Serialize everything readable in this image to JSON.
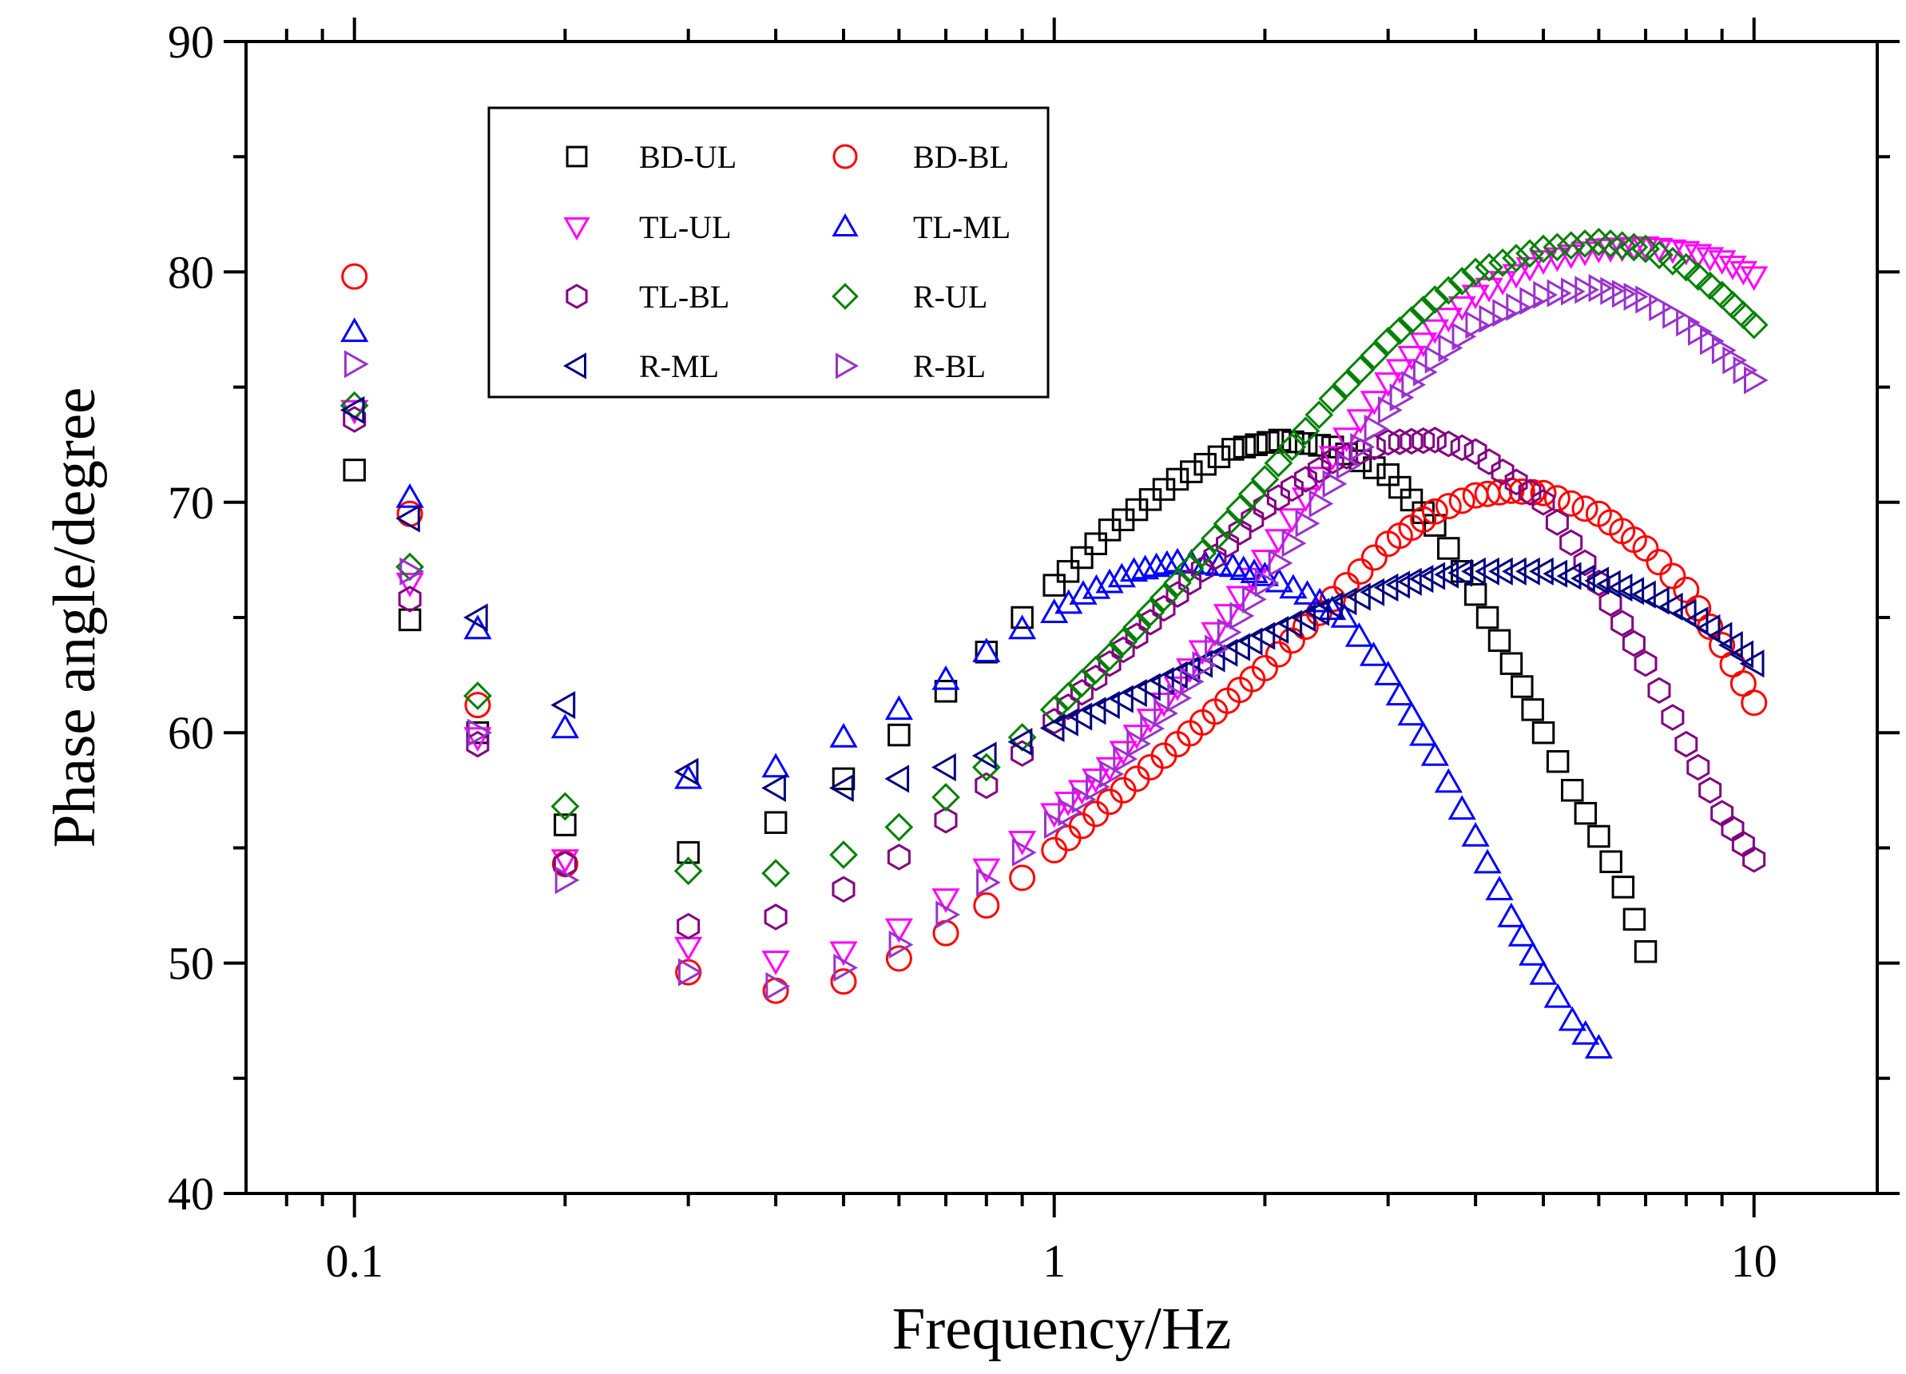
{
  "chart_data": {
    "type": "scatter",
    "xlabel": "Frequency/Hz",
    "ylabel": "Phase angle/degree",
    "x_scale": "log",
    "xlim": [
      0.07,
      15
    ],
    "ylim": [
      40,
      90
    ],
    "x_ticks": [
      {
        "value": 0.1,
        "label": "0.1"
      },
      {
        "value": 1,
        "label": "1"
      },
      {
        "value": 10,
        "label": "10"
      }
    ],
    "y_ticks": [
      {
        "value": 40,
        "label": "40"
      },
      {
        "value": 50,
        "label": "50"
      },
      {
        "value": 60,
        "label": "60"
      },
      {
        "value": 70,
        "label": "70"
      },
      {
        "value": 80,
        "label": "80"
      },
      {
        "value": 90,
        "label": "90"
      }
    ],
    "legend_position": "top-left",
    "series": [
      {
        "name": "BD-UL",
        "marker": "square",
        "color": "#000000",
        "points": [
          [
            0.1,
            71.4
          ],
          [
            0.12,
            64.9
          ],
          [
            0.15,
            60.0
          ],
          [
            0.2,
            56.0
          ],
          [
            0.3,
            54.8
          ],
          [
            0.4,
            56.1
          ],
          [
            0.5,
            58.0
          ],
          [
            0.6,
            59.9
          ],
          [
            0.7,
            61.8
          ],
          [
            0.8,
            63.5
          ],
          [
            0.9,
            65.0
          ],
          [
            1,
            66.4
          ],
          [
            1.2,
            68.8
          ],
          [
            1.5,
            71.0
          ],
          [
            1.8,
            72.3
          ],
          [
            2.1,
            72.7
          ],
          [
            2.5,
            72.4
          ],
          [
            3,
            71.2
          ],
          [
            3.5,
            69.0
          ],
          [
            4,
            66.0
          ],
          [
            4.5,
            63.0
          ],
          [
            5,
            60.0
          ],
          [
            5.5,
            57.5
          ],
          [
            6,
            55.5
          ],
          [
            6.5,
            53.3
          ],
          [
            7,
            50.5
          ]
        ]
      },
      {
        "name": "BD-BL",
        "marker": "circle",
        "color": "#ff0000",
        "points": [
          [
            0.1,
            79.8
          ],
          [
            0.12,
            69.5
          ],
          [
            0.15,
            61.2
          ],
          [
            0.2,
            54.3
          ],
          [
            0.3,
            49.6
          ],
          [
            0.4,
            48.8
          ],
          [
            0.5,
            49.2
          ],
          [
            0.6,
            50.2
          ],
          [
            0.7,
            51.3
          ],
          [
            0.8,
            52.5
          ],
          [
            0.9,
            53.7
          ],
          [
            1,
            54.9
          ],
          [
            1.2,
            57.0
          ],
          [
            1.5,
            59.5
          ],
          [
            2,
            62.8
          ],
          [
            2.5,
            65.8
          ],
          [
            3,
            68.2
          ],
          [
            3.5,
            69.6
          ],
          [
            4,
            70.3
          ],
          [
            4.5,
            70.5
          ],
          [
            5,
            70.4
          ],
          [
            6,
            69.5
          ],
          [
            7,
            68.0
          ],
          [
            8,
            66.2
          ],
          [
            9,
            63.8
          ],
          [
            10,
            61.3
          ]
        ]
      },
      {
        "name": "TL-UL",
        "marker": "triangle-down",
        "color": "#ff00ff",
        "points": [
          [
            0.1,
            74.0
          ],
          [
            0.12,
            66.5
          ],
          [
            0.15,
            59.8
          ],
          [
            0.2,
            54.5
          ],
          [
            0.3,
            50.7
          ],
          [
            0.4,
            50.1
          ],
          [
            0.5,
            50.5
          ],
          [
            0.6,
            51.5
          ],
          [
            0.7,
            52.8
          ],
          [
            0.8,
            54.1
          ],
          [
            0.9,
            55.3
          ],
          [
            1,
            56.5
          ],
          [
            1.2,
            58.5
          ],
          [
            1.5,
            62.0
          ],
          [
            2,
            67.5
          ],
          [
            2.5,
            72.0
          ],
          [
            3,
            75.2
          ],
          [
            3.5,
            77.5
          ],
          [
            4,
            79.0
          ],
          [
            5,
            80.5
          ],
          [
            6,
            81.0
          ],
          [
            7,
            81.1
          ],
          [
            8,
            80.9
          ],
          [
            9,
            80.5
          ],
          [
            10,
            79.8
          ]
        ]
      },
      {
        "name": "TL-ML",
        "marker": "triangle-up",
        "color": "#0000ff",
        "points": [
          [
            0.1,
            77.4
          ],
          [
            0.12,
            70.2
          ],
          [
            0.15,
            64.5
          ],
          [
            0.2,
            60.2
          ],
          [
            0.3,
            58.0
          ],
          [
            0.4,
            58.5
          ],
          [
            0.5,
            59.8
          ],
          [
            0.6,
            61.0
          ],
          [
            0.7,
            62.3
          ],
          [
            0.8,
            63.5
          ],
          [
            0.9,
            64.5
          ],
          [
            1,
            65.2
          ],
          [
            1.1,
            66.0
          ],
          [
            1.2,
            66.5
          ],
          [
            1.3,
            67.0
          ],
          [
            1.4,
            67.2
          ],
          [
            1.5,
            67.4
          ],
          [
            1.8,
            67.2
          ],
          [
            2,
            66.8
          ],
          [
            2.3,
            66.0
          ],
          [
            2.6,
            65.0
          ],
          [
            3,
            62.5
          ],
          [
            3.5,
            59.0
          ],
          [
            4,
            55.5
          ],
          [
            4.5,
            52.0
          ],
          [
            5,
            49.5
          ],
          [
            5.5,
            47.5
          ],
          [
            6,
            46.3
          ]
        ]
      },
      {
        "name": "TL-BL",
        "marker": "hexagon",
        "color": "#800080",
        "points": [
          [
            0.1,
            73.6
          ],
          [
            0.12,
            65.8
          ],
          [
            0.15,
            59.5
          ],
          [
            0.2,
            54.3
          ],
          [
            0.3,
            51.6
          ],
          [
            0.4,
            52.0
          ],
          [
            0.5,
            53.2
          ],
          [
            0.6,
            54.6
          ],
          [
            0.7,
            56.2
          ],
          [
            0.8,
            57.7
          ],
          [
            0.9,
            59.1
          ],
          [
            1,
            60.5
          ],
          [
            1.2,
            63.0
          ],
          [
            1.5,
            66.0
          ],
          [
            2,
            69.8
          ],
          [
            2.5,
            71.8
          ],
          [
            3,
            72.6
          ],
          [
            3.5,
            72.7
          ],
          [
            4,
            72.2
          ],
          [
            5,
            70.0
          ],
          [
            6,
            66.5
          ],
          [
            7,
            63.0
          ],
          [
            8,
            59.5
          ],
          [
            9,
            56.5
          ],
          [
            10,
            54.5
          ]
        ]
      },
      {
        "name": "R-UL",
        "marker": "diamond",
        "color": "#008000",
        "points": [
          [
            0.1,
            74.2
          ],
          [
            0.12,
            67.2
          ],
          [
            0.15,
            61.6
          ],
          [
            0.2,
            56.8
          ],
          [
            0.3,
            54.0
          ],
          [
            0.4,
            53.9
          ],
          [
            0.5,
            54.7
          ],
          [
            0.6,
            55.9
          ],
          [
            0.7,
            57.2
          ],
          [
            0.8,
            58.5
          ],
          [
            0.9,
            59.8
          ],
          [
            1,
            61.0
          ],
          [
            1.2,
            63.3
          ],
          [
            1.5,
            66.5
          ],
          [
            2,
            71.0
          ],
          [
            2.5,
            74.5
          ],
          [
            3,
            77.0
          ],
          [
            3.5,
            78.8
          ],
          [
            4,
            80.0
          ],
          [
            5,
            81.0
          ],
          [
            6,
            81.3
          ],
          [
            7,
            81.0
          ],
          [
            8,
            80.2
          ],
          [
            9,
            79.0
          ],
          [
            10,
            77.7
          ]
        ]
      },
      {
        "name": "R-ML",
        "marker": "triangle-left",
        "color": "#000080",
        "points": [
          [
            0.1,
            74.0
          ],
          [
            0.12,
            69.3
          ],
          [
            0.15,
            65.0
          ],
          [
            0.2,
            61.2
          ],
          [
            0.3,
            58.3
          ],
          [
            0.4,
            57.6
          ],
          [
            0.5,
            57.6
          ],
          [
            0.6,
            58.0
          ],
          [
            0.7,
            58.5
          ],
          [
            0.8,
            59.0
          ],
          [
            0.9,
            59.6
          ],
          [
            1,
            60.2
          ],
          [
            1.2,
            61.2
          ],
          [
            1.5,
            62.5
          ],
          [
            2,
            64.2
          ],
          [
            2.5,
            65.5
          ],
          [
            3,
            66.3
          ],
          [
            3.5,
            66.8
          ],
          [
            4,
            67.0
          ],
          [
            5,
            67.0
          ],
          [
            6,
            66.6
          ],
          [
            7,
            66.0
          ],
          [
            8,
            65.2
          ],
          [
            9,
            64.2
          ],
          [
            10,
            63.0
          ]
        ]
      },
      {
        "name": "R-BL",
        "marker": "triangle-right",
        "color": "#9932cc",
        "points": [
          [
            0.1,
            76.0
          ],
          [
            0.12,
            67.0
          ],
          [
            0.15,
            60.0
          ],
          [
            0.2,
            53.6
          ],
          [
            0.3,
            49.6
          ],
          [
            0.4,
            49.0
          ],
          [
            0.5,
            49.8
          ],
          [
            0.6,
            50.8
          ],
          [
            0.7,
            52.1
          ],
          [
            0.8,
            53.5
          ],
          [
            0.9,
            54.8
          ],
          [
            1,
            56.0
          ],
          [
            1.2,
            58.2
          ],
          [
            1.5,
            61.5
          ],
          [
            2,
            66.5
          ],
          [
            2.5,
            70.8
          ],
          [
            3,
            74.0
          ],
          [
            3.5,
            76.2
          ],
          [
            4,
            77.7
          ],
          [
            5,
            79.0
          ],
          [
            6,
            79.3
          ],
          [
            7,
            78.8
          ],
          [
            8,
            77.8
          ],
          [
            9,
            76.6
          ],
          [
            10,
            75.3
          ]
        ]
      }
    ]
  }
}
